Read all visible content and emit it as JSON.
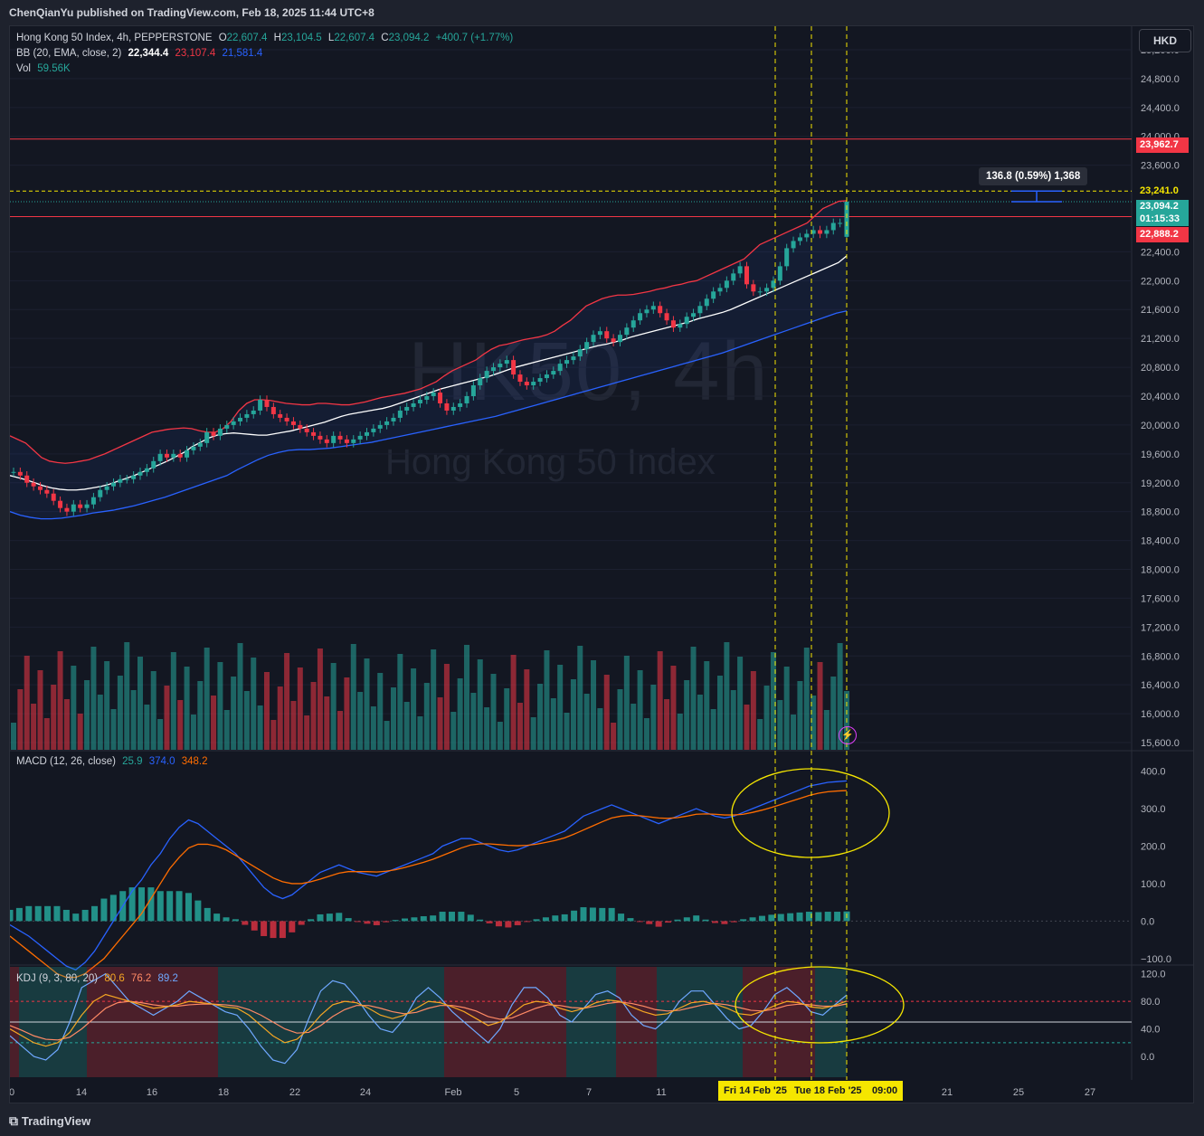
{
  "header": {
    "publisher_line": "ChenQianYu published on TradingView.com, Feb 18, 2025 11:44 UTC+8"
  },
  "watermark": {
    "symbol": "HK50, 4h",
    "name": "Hong Kong 50 Index"
  },
  "legend": {
    "symbol": "Hong Kong 50 Index, 4h, PEPPERSTONE",
    "o_label": "O",
    "o": "22,607.4",
    "h_label": "H",
    "h": "23,104.5",
    "l_label": "L",
    "l": "22,607.4",
    "c_label": "C",
    "c": "23,094.2",
    "change": "+400.7 (+1.77%)",
    "bb_label": "BB (20, EMA, close, 2)",
    "bb_basis": "22,344.4",
    "bb_upper": "23,107.4",
    "bb_lower": "21,581.4",
    "vol_label": "Vol",
    "vol": "59.56K",
    "macd_label": "MACD (12, 26, close)",
    "macd_hist": "25.9",
    "macd_line": "374.0",
    "macd_signal": "348.2",
    "kdj_label": "KDJ (9, 3, 80, 20)",
    "kdj_k": "80.6",
    "kdj_d": "76.2",
    "kdj_j": "89.2"
  },
  "currency_button": "HKD",
  "price_tags": {
    "resistance": "23,962.7",
    "measure": "23,241.0",
    "last": "23,094.2",
    "countdown": "01:15:33",
    "support": "22,888.2"
  },
  "measure_tooltip": "136.8 (0.59%) 1,368",
  "x_tags": {
    "left": "Fri 14 Feb '25",
    "right": "Tue 18 Feb '25",
    "time": "09:00"
  },
  "brand": "TradingView",
  "colors": {
    "up": "#26a69a",
    "down": "#f23645",
    "basis": "#ffffff",
    "upper": "#f23645",
    "lower": "#2962ff",
    "macd": "#2962ff",
    "signal": "#ff6d00",
    "highlight": "#f5e600"
  },
  "chart_data": [
    {
      "type": "candlestick",
      "title": "Hong Kong 50 Index, 4h, PEPPERSTONE",
      "x_ticks": [
        "0",
        "14",
        "16",
        "18",
        "22",
        "24",
        "Feb",
        "5",
        "7",
        "11",
        "21",
        "25",
        "27"
      ],
      "y_ticks": [
        15600,
        16000,
        16400,
        16800,
        17200,
        17600,
        18000,
        18400,
        18800,
        19200,
        19600,
        20000,
        20400,
        20800,
        21200,
        21600,
        22000,
        22400,
        23600,
        24000,
        24400,
        24800,
        25200
      ],
      "y_range": [
        15500,
        25300
      ],
      "horizontal_lines": [
        23962.7,
        23241.0,
        22888.2
      ],
      "last_candle": {
        "open": 22607.4,
        "high": 23104.5,
        "low": 22607.4,
        "close": 23094.2
      },
      "close": [
        19350,
        19300,
        19200,
        19150,
        19100,
        19050,
        18950,
        18850,
        18800,
        18900,
        18850,
        18900,
        19000,
        19100,
        19150,
        19200,
        19250,
        19250,
        19300,
        19350,
        19400,
        19500,
        19600,
        19550,
        19600,
        19550,
        19650,
        19700,
        19750,
        19900,
        19850,
        19950,
        20000,
        20050,
        20100,
        20150,
        20200,
        20350,
        20250,
        20150,
        20100,
        20050,
        20000,
        19950,
        19900,
        19850,
        19800,
        19750,
        19850,
        19800,
        19750,
        19800,
        19850,
        19900,
        19950,
        20000,
        20050,
        20100,
        20200,
        20250,
        20300,
        20350,
        20400,
        20450,
        20300,
        20200,
        20250,
        20300,
        20400,
        20550,
        20650,
        20750,
        20800,
        20850,
        20900,
        20700,
        20600,
        20550,
        20600,
        20650,
        20700,
        20750,
        20850,
        20900,
        20950,
        21050,
        21150,
        21250,
        21300,
        21200,
        21150,
        21250,
        21350,
        21450,
        21550,
        21600,
        21650,
        21550,
        21450,
        21350,
        21400,
        21500,
        21550,
        21650,
        21750,
        21850,
        21900,
        22000,
        22100,
        22200,
        21950,
        21850,
        21850,
        21900,
        22000,
        22200,
        22450,
        22550,
        22600,
        22650,
        22700,
        22650,
        22700,
        22800,
        22800,
        23094.2
      ],
      "bb_upper": [
        19850,
        19800,
        19750,
        19650,
        19550,
        19500,
        19480,
        19470,
        19480,
        19500,
        19520,
        19560,
        19600,
        19650,
        19700,
        19750,
        19800,
        19850,
        19900,
        19920,
        19940,
        19950,
        19960,
        19950,
        19920,
        19900,
        19900,
        19950,
        20050,
        20200,
        20300,
        20350,
        20350,
        20340,
        20320,
        20300,
        20290,
        20280,
        20280,
        20300,
        20300,
        20290,
        20280,
        20280,
        20300,
        20320,
        20350,
        20380,
        20400,
        20420,
        20440,
        20470,
        20500,
        20550,
        20600,
        20680,
        20750,
        20800,
        20850,
        20900,
        20980,
        21050,
        21100,
        21120,
        21150,
        21180,
        21200,
        21220,
        21250,
        21300,
        21380,
        21450,
        21550,
        21650,
        21700,
        21750,
        21780,
        21800,
        21800,
        21810,
        21830,
        21850,
        21880,
        21900,
        21930,
        21950,
        21980,
        22000,
        22050,
        22100,
        22150,
        22200,
        22250,
        22300,
        22400,
        22500,
        22550,
        22600,
        22650,
        22700,
        22750,
        22800,
        22900,
        23000,
        23050,
        23100,
        23107.4
      ],
      "bb_basis": [
        19300,
        19270,
        19240,
        19200,
        19160,
        19130,
        19110,
        19100,
        19100,
        19110,
        19130,
        19150,
        19180,
        19220,
        19260,
        19300,
        19350,
        19400,
        19450,
        19500,
        19560,
        19620,
        19700,
        19760,
        19820,
        19860,
        19880,
        19890,
        19880,
        19870,
        19860,
        19860,
        19880,
        19900,
        19920,
        19950,
        19980,
        20010,
        20040,
        20080,
        20120,
        20150,
        20170,
        20190,
        20210,
        20230,
        20260,
        20300,
        20340,
        20380,
        20420,
        20460,
        20500,
        20530,
        20560,
        20590,
        20620,
        20650,
        20680,
        20720,
        20760,
        20800,
        20830,
        20860,
        20890,
        20920,
        20950,
        20980,
        21010,
        21040,
        21070,
        21100,
        21120,
        21150,
        21180,
        21220,
        21250,
        21280,
        21310,
        21340,
        21370,
        21400,
        21430,
        21470,
        21500,
        21530,
        21560,
        21600,
        21650,
        21700,
        21750,
        21800,
        21850,
        21900,
        21950,
        22000,
        22050,
        22100,
        22150,
        22200,
        22250,
        22344.4
      ],
      "bb_lower": [
        18800,
        18750,
        18720,
        18700,
        18700,
        18710,
        18730,
        18750,
        18780,
        18800,
        18820,
        18850,
        18880,
        18920,
        18960,
        19000,
        19050,
        19100,
        19150,
        19200,
        19250,
        19300,
        19380,
        19450,
        19520,
        19580,
        19620,
        19650,
        19660,
        19660,
        19670,
        19680,
        19700,
        19720,
        19740,
        19760,
        19790,
        19820,
        19850,
        19880,
        19910,
        19940,
        19970,
        20000,
        20030,
        20060,
        20090,
        20120,
        20160,
        20200,
        20240,
        20280,
        20320,
        20360,
        20400,
        20440,
        20480,
        20520,
        20560,
        20600,
        20640,
        20680,
        20720,
        20760,
        20800,
        20840,
        20880,
        20920,
        20960,
        21000,
        21050,
        21100,
        21150,
        21200,
        21250,
        21300,
        21350,
        21400,
        21450,
        21500,
        21550,
        21581.4
      ]
    },
    {
      "type": "bar",
      "title": "Vol",
      "last_value": "59.56K"
    },
    {
      "type": "line",
      "title": "MACD (12, 26, close)",
      "y_ticks": [
        -100,
        0,
        100,
        200,
        300,
        400
      ],
      "y_range": [
        -110,
        440
      ],
      "macd": [
        -10,
        -25,
        -40,
        -60,
        -80,
        -100,
        -120,
        -130,
        -110,
        -80,
        -40,
        0,
        40,
        80,
        110,
        150,
        180,
        220,
        250,
        270,
        260,
        240,
        220,
        200,
        180,
        150,
        120,
        90,
        70,
        60,
        70,
        90,
        110,
        130,
        140,
        150,
        140,
        130,
        125,
        120,
        130,
        140,
        150,
        160,
        170,
        180,
        200,
        210,
        220,
        220,
        210,
        200,
        190,
        185,
        190,
        200,
        210,
        220,
        230,
        240,
        260,
        280,
        290,
        300,
        310,
        300,
        290,
        280,
        270,
        260,
        270,
        280,
        290,
        300,
        290,
        280,
        275,
        280,
        290,
        300,
        310,
        320,
        330,
        340,
        350,
        360,
        365,
        370,
        372,
        374
      ],
      "signal": [
        -40,
        -60,
        -80,
        -100,
        -120,
        -140,
        -150,
        -150,
        -140,
        -120,
        -100,
        -70,
        -40,
        -10,
        20,
        60,
        100,
        140,
        170,
        195,
        205,
        205,
        200,
        190,
        175,
        160,
        145,
        130,
        115,
        105,
        100,
        100,
        105,
        112,
        120,
        128,
        132,
        132,
        132,
        131,
        133,
        137,
        143,
        150,
        157,
        165,
        175,
        185,
        195,
        203,
        206,
        206,
        204,
        202,
        201,
        202,
        205,
        210,
        215,
        222,
        232,
        243,
        254,
        265,
        275,
        280,
        282,
        281,
        278,
        275,
        274,
        276,
        280,
        285,
        286,
        285,
        283,
        283,
        285,
        290,
        296,
        303,
        311,
        319,
        327,
        335,
        341,
        345,
        347,
        348.2
      ],
      "hist_last": 25.9
    },
    {
      "type": "line",
      "title": "KDJ (9, 3, 80, 20)",
      "y_ticks": [
        0,
        40,
        80,
        120
      ],
      "y_range": [
        -30,
        130
      ],
      "k": [
        40,
        30,
        20,
        15,
        20,
        35,
        60,
        80,
        90,
        85,
        80,
        75,
        70,
        72,
        75,
        80,
        78,
        76,
        72,
        70,
        60,
        45,
        30,
        20,
        25,
        40,
        60,
        75,
        80,
        78,
        70,
        60,
        55,
        60,
        70,
        80,
        78,
        72,
        65,
        55,
        45,
        50,
        62,
        75,
        80,
        78,
        70,
        65,
        70,
        78,
        82,
        80,
        72,
        65,
        60,
        62,
        70,
        78,
        80,
        76,
        70,
        62,
        60,
        66,
        74,
        80,
        78,
        72,
        70,
        74,
        80.6
      ],
      "d": [
        45,
        38,
        30,
        25,
        24,
        28,
        40,
        55,
        70,
        78,
        80,
        78,
        75,
        73,
        73,
        75,
        76,
        76,
        75,
        73,
        68,
        60,
        50,
        40,
        34,
        35,
        45,
        58,
        68,
        74,
        74,
        70,
        65,
        62,
        64,
        70,
        74,
        74,
        71,
        66,
        58,
        54,
        56,
        63,
        70,
        75,
        74,
        71,
        70,
        73,
        77,
        79,
        77,
        73,
        68,
        66,
        67,
        71,
        75,
        77,
        75,
        71,
        67,
        66,
        69,
        74,
        76,
        75,
        73,
        73,
        76.2
      ],
      "j": [
        30,
        15,
        0,
        -5,
        10,
        50,
        100,
        110,
        120,
        100,
        80,
        70,
        60,
        70,
        80,
        95,
        85,
        75,
        65,
        60,
        40,
        15,
        -5,
        -10,
        10,
        55,
        95,
        110,
        105,
        85,
        60,
        40,
        35,
        55,
        85,
        100,
        85,
        65,
        50,
        35,
        20,
        40,
        75,
        100,
        100,
        85,
        60,
        50,
        70,
        90,
        95,
        85,
        60,
        45,
        40,
        55,
        80,
        95,
        95,
        75,
        55,
        40,
        45,
        65,
        90,
        100,
        85,
        65,
        60,
        75,
        89.2
      ]
    }
  ]
}
